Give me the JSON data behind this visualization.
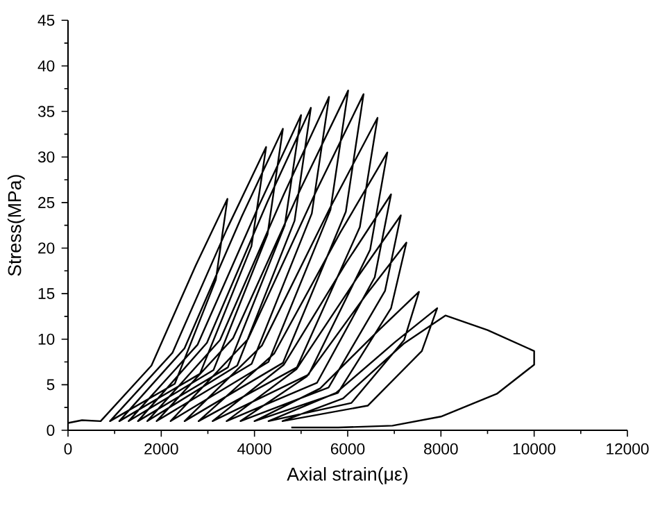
{
  "chart_data": {
    "type": "line",
    "xlabel": "Axial strain(με)",
    "ylabel": "Stress(MPa)",
    "xlim": [
      0,
      12000
    ],
    "ylim": [
      0,
      45
    ],
    "xticks": [
      0,
      {
        "value": 1000,
        "label": null
      },
      2000,
      {
        "value": 3000,
        "label": null
      },
      4000,
      {
        "value": 5000,
        "label": null
      },
      6000,
      {
        "value": 7000,
        "label": null
      },
      8000,
      {
        "value": 9000,
        "label": null
      },
      10000,
      {
        "value": 11000,
        "label": null
      },
      12000
    ],
    "yticks": [
      0,
      {
        "value": 2.5,
        "label": null
      },
      5,
      {
        "value": 7.5,
        "label": null
      },
      10,
      {
        "value": 12.5,
        "label": null
      },
      15,
      {
        "value": 17.5,
        "label": null
      },
      20,
      {
        "value": 22.5,
        "label": null
      },
      25,
      {
        "value": 27.5,
        "label": null
      },
      30,
      {
        "value": 32.5,
        "label": null
      },
      35,
      {
        "value": 37.5,
        "label": null
      },
      40,
      {
        "value": 42.5,
        "label": null
      },
      45
    ],
    "marker": "none",
    "line_style": "solid",
    "series": [
      {
        "color": "#000000",
        "x": [
          0,
          300,
          700,
          1790,
          2740,
          3420,
          3170,
          2290,
          900,
          2240,
          3410,
          4250,
          3935,
          2830,
          1100,
          2500,
          3730,
          4610,
          4280,
          3120,
          1300,
          2780,
          4080,
          5000,
          4650,
          3430,
          1500,
          2980,
          4280,
          5210,
          4860,
          3630,
          1700,
          3260,
          4630,
          5600,
          5230,
          3940,
          1900,
          3540,
          4980,
          6010,
          5630,
          4300,
          2200,
          3860,
          5310,
          6340,
          5960,
          4610,
          2500,
          4160,
          5610,
          6640,
          6260,
          4910,
          2800,
          4420,
          5840,
          6850,
          6480,
          5160,
          3100,
          4630,
          5970,
          6930,
          6580,
          5340,
          3400,
          4900,
          6210,
          7140,
          6800,
          5590,
          3700,
          5120,
          6370,
          7260,
          6930,
          5790,
          4000,
          5410,
          6650,
          7530,
          7210,
          6080,
          4300,
          5750,
          7020,
          7920,
          7590,
          6430,
          4600,
          5900,
          7200,
          8100,
          9000,
          10000,
          10000,
          9200,
          8000,
          6960,
          5800,
          4790
        ],
        "values": [
          0.8,
          1.1,
          1,
          7.1,
          18.1,
          25.4,
          16.5,
          5.1,
          1,
          8.5,
          22.1,
          31.1,
          20.2,
          6.2,
          1,
          9.0,
          23.5,
          33.1,
          21.5,
          6.6,
          1,
          9.4,
          24.5,
          34.6,
          22.5,
          6.9,
          1,
          9.6,
          25.1,
          35.4,
          23.0,
          7.1,
          1,
          9.9,
          25.9,
          36.6,
          23.8,
          7.3,
          1,
          10.1,
          26.4,
          37.3,
          24.2,
          7.5,
          1,
          10.0,
          26.1,
          36.9,
          24.0,
          7.4,
          1,
          9.3,
          24.3,
          34.3,
          22.3,
          6.9,
          1,
          8.4,
          21.7,
          30.5,
          19.8,
          6.1,
          1,
          7.2,
          18.4,
          25.9,
          16.8,
          5.2,
          1,
          6.7,
          16.8,
          23.6,
          15.3,
          4.7,
          1,
          5.9,
          14.7,
          20.6,
          13.4,
          4.1,
          1,
          4.6,
          10.9,
          15.2,
          9.9,
          3.0,
          1,
          4.1,
          9.7,
          13.4,
          8.7,
          2.7,
          1,
          3.5,
          9.5,
          12.6,
          11.0,
          8.7,
          7.2,
          4.0,
          1.5,
          0.5,
          0.3,
          0.3
        ]
      }
    ]
  }
}
